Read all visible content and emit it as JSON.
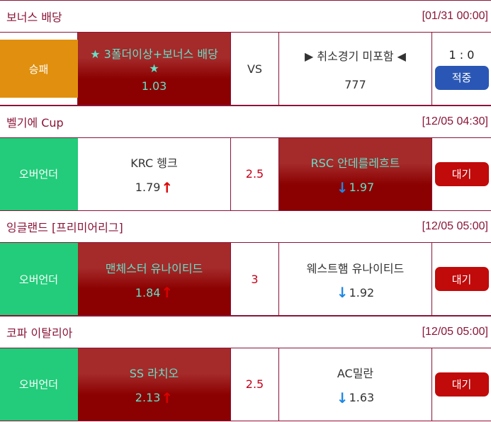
{
  "colors": {
    "border": "#8a1538",
    "selected": "#8b0000",
    "selected_text": "#63e0c8",
    "orange": "#e0900e",
    "green": "#22cc7a",
    "wait_button": "#c10a0a",
    "hit_button": "#2a57b5"
  },
  "sections": [
    {
      "league": "보너스 배당",
      "time": "[01/31 00:00]",
      "type": "승패",
      "type_color": "#e0900e",
      "type_inset": true,
      "home": {
        "name": "★ 3폴더이상+보너스 배당 ★",
        "odds": "1.03",
        "arrow": "",
        "selected": true
      },
      "center": "VS",
      "away": {
        "name": "▶ 취소경기 미포함 ◀",
        "odds": "777",
        "arrow": "",
        "selected": false
      },
      "score": "1 : 0",
      "status": "적중",
      "status_kind": "hit"
    },
    {
      "league": "벨기에 Cup",
      "time": "[12/05 04:30]",
      "type": "오버언더",
      "type_color": "#22cc7a",
      "home": {
        "name": "KRC 헹크",
        "odds": "1.79",
        "arrow": "up",
        "selected": false
      },
      "center": "2.5",
      "away": {
        "name": "RSC 안데를레흐트",
        "odds": "1.97",
        "arrow": "down",
        "selected": true
      },
      "status": "대기",
      "status_kind": "wait"
    },
    {
      "league": "잉글랜드 [프리미어리그]",
      "time": "[12/05 05:00]",
      "type": "오버언더",
      "type_color": "#22cc7a",
      "home": {
        "name": "맨체스터 유나이티드",
        "odds": "1.84",
        "arrow": "up",
        "selected": true
      },
      "center": "3",
      "away": {
        "name": "웨스트햄 유나이티드",
        "odds": "1.92",
        "arrow": "down",
        "selected": false
      },
      "status": "대기",
      "status_kind": "wait"
    },
    {
      "league": "코파 이탈리아",
      "time": "[12/05 05:00]",
      "type": "오버언더",
      "type_color": "#22cc7a",
      "home": {
        "name": "SS 라치오",
        "odds": "2.13",
        "arrow": "up",
        "selected": true
      },
      "center": "2.5",
      "away": {
        "name": "AC밀란",
        "odds": "1.63",
        "arrow": "down",
        "selected": false
      },
      "status": "대기",
      "status_kind": "wait"
    }
  ]
}
